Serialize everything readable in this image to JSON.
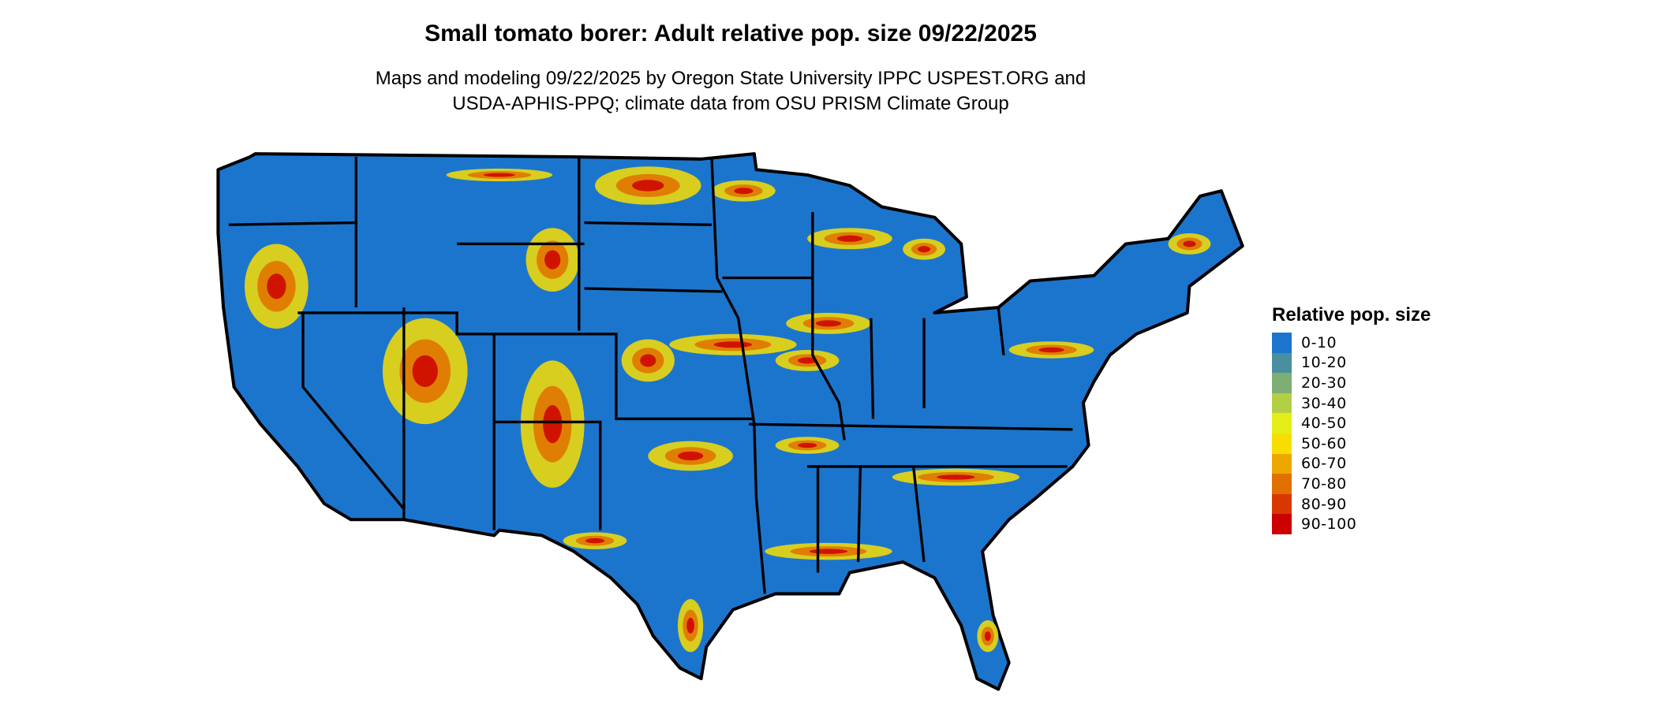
{
  "title": "Small tomato borer: Adult relative pop. size 09/22/2025",
  "subtitle_line1": "Maps and modeling 09/22/2025 by Oregon State University IPPC USPEST.ORG and",
  "subtitle_line2": "USDA-APHIS-PPQ; climate data from OSU PRISM Climate Group",
  "legend": {
    "title": "Relative pop. size",
    "items": [
      {
        "label": "0-10",
        "color": "#1C75CD"
      },
      {
        "label": "10-20",
        "color": "#4A8F9F"
      },
      {
        "label": "20-30",
        "color": "#7DAF74"
      },
      {
        "label": "30-40",
        "color": "#B3CF46"
      },
      {
        "label": "40-50",
        "color": "#E3EE18"
      },
      {
        "label": "50-60",
        "color": "#F8DE00"
      },
      {
        "label": "60-70",
        "color": "#EDA800"
      },
      {
        "label": "70-80",
        "color": "#E27000"
      },
      {
        "label": "80-90",
        "color": "#D83800"
      },
      {
        "label": "90-100",
        "color": "#CC0000"
      }
    ]
  },
  "map": {
    "region": "Contiguous United States",
    "background_class": "0-10"
  }
}
